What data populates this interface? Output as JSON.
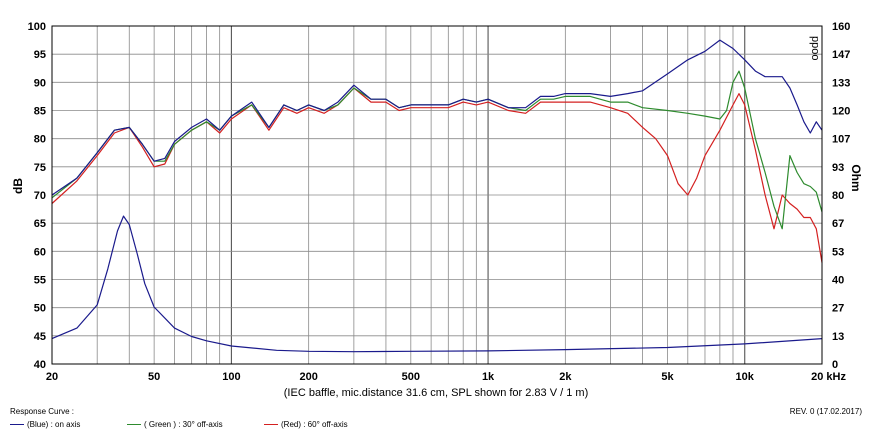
{
  "chart_data": {
    "type": "line",
    "caption": "(IEC baffle, mic.distance 31.6 cm, SPL shown for 2.83 V / 1 m)",
    "xscale": "log",
    "xlim": [
      20,
      20000
    ],
    "x_ticks": [
      {
        "v": 20,
        "label": "20"
      },
      {
        "v": 50,
        "label": "50"
      },
      {
        "v": 100,
        "label": "100"
      },
      {
        "v": 200,
        "label": "200"
      },
      {
        "v": 500,
        "label": "500"
      },
      {
        "v": 1000,
        "label": "1k"
      },
      {
        "v": 2000,
        "label": "2k"
      },
      {
        "v": 5000,
        "label": "5k"
      },
      {
        "v": 10000,
        "label": "10k"
      },
      {
        "v": 20000,
        "label": "20 kHz"
      }
    ],
    "ylabel_left": "dB",
    "ylim_left": [
      40,
      100
    ],
    "yticks_left": [
      40,
      45,
      50,
      55,
      60,
      65,
      70,
      75,
      80,
      85,
      90,
      95,
      100
    ],
    "ylabel_right": "Ohm",
    "ylim_right": [
      0,
      160
    ],
    "yticks_right": [
      "0",
      "13",
      "27",
      "40",
      "53",
      "67",
      "80",
      "93",
      "107",
      "120",
      "133",
      "147",
      "160"
    ],
    "corner_label": "ppoo",
    "grid": true,
    "series": [
      {
        "name": "(Blue) : on axis",
        "color": "#1a1a8c",
        "x": [
          20,
          25,
          30,
          35,
          40,
          45,
          50,
          55,
          60,
          70,
          80,
          90,
          100,
          120,
          140,
          160,
          180,
          200,
          230,
          260,
          300,
          350,
          400,
          450,
          500,
          600,
          700,
          800,
          900,
          1000,
          1200,
          1400,
          1600,
          1800,
          2000,
          2500,
          3000,
          3500,
          4000,
          5000,
          6000,
          7000,
          8000,
          9000,
          10000,
          11000,
          12000,
          13000,
          14000,
          15000,
          16000,
          17000,
          18000,
          19000,
          20000
        ],
        "y": [
          70,
          73,
          77.5,
          81.5,
          82,
          79,
          76,
          76.5,
          79.5,
          82,
          83.5,
          81.5,
          84,
          86.5,
          82,
          86,
          85,
          86,
          85,
          86.5,
          89.5,
          87,
          87,
          85.5,
          86,
          86,
          86,
          87,
          86.5,
          87,
          85.5,
          85.5,
          87.5,
          87.5,
          88,
          88,
          87.5,
          88,
          88.5,
          91.5,
          94,
          95.5,
          97.5,
          96,
          94,
          92,
          91,
          91,
          91,
          89,
          86,
          83,
          81,
          83,
          81.5
        ]
      },
      {
        "name": "( Green ) : 30° off-axis",
        "color": "#2e8b2e",
        "x": [
          20,
          25,
          30,
          35,
          40,
          45,
          50,
          55,
          60,
          70,
          80,
          90,
          100,
          120,
          140,
          160,
          180,
          200,
          230,
          260,
          300,
          350,
          400,
          450,
          500,
          600,
          700,
          800,
          900,
          1000,
          1200,
          1400,
          1600,
          1800,
          2000,
          2500,
          3000,
          3500,
          4000,
          5000,
          6000,
          7000,
          8000,
          8500,
          9000,
          9500,
          10000,
          11000,
          12000,
          13000,
          14000,
          15000,
          16000,
          17000,
          18000,
          19000,
          20000
        ],
        "y": [
          69.5,
          73,
          77.5,
          81.5,
          82,
          79,
          76,
          76,
          79,
          81.5,
          83,
          81.5,
          84,
          86,
          82,
          86,
          85,
          86,
          85,
          86,
          89,
          87,
          87,
          85.5,
          86,
          86,
          86,
          87,
          86.5,
          87,
          85.5,
          85,
          87,
          87,
          87.5,
          87.5,
          86.5,
          86.5,
          85.5,
          85,
          84.5,
          84,
          83.5,
          85,
          90,
          92,
          89,
          80,
          74,
          68,
          64,
          77,
          74,
          72,
          71.5,
          70.5,
          67
        ]
      },
      {
        "name": "(Red) : 60° off-axis",
        "color": "#d42020",
        "x": [
          20,
          25,
          30,
          35,
          40,
          45,
          50,
          55,
          60,
          70,
          80,
          90,
          100,
          120,
          140,
          160,
          180,
          200,
          230,
          260,
          300,
          350,
          400,
          450,
          500,
          600,
          700,
          800,
          900,
          1000,
          1200,
          1400,
          1600,
          1800,
          2000,
          2500,
          3000,
          3500,
          4000,
          4500,
          5000,
          5500,
          6000,
          6500,
          7000,
          8000,
          9000,
          9500,
          10000,
          11000,
          12000,
          13000,
          14000,
          15000,
          16000,
          17000,
          18000,
          19000,
          20000
        ],
        "y": [
          68.5,
          72.5,
          77,
          81,
          82,
          78.5,
          75,
          75.5,
          79,
          81.5,
          83,
          81,
          83.5,
          86,
          81.5,
          85.5,
          84.5,
          85.5,
          84.5,
          86,
          89,
          86.5,
          86.5,
          85,
          85.5,
          85.5,
          85.5,
          86.5,
          86,
          86.5,
          85,
          84.5,
          86.5,
          86.5,
          86.5,
          86.5,
          85.5,
          84.5,
          82,
          80,
          77,
          72,
          70,
          73,
          77,
          81.5,
          86,
          88,
          86,
          78,
          70,
          64,
          70,
          68.5,
          67.5,
          66,
          66,
          64,
          58
        ]
      },
      {
        "name": "impedance",
        "axis": "right",
        "color": "#1a1a8c",
        "x": [
          20,
          25,
          30,
          33,
          36,
          38,
          40,
          43,
          46,
          50,
          60,
          70,
          80,
          100,
          150,
          200,
          300,
          500,
          1000,
          2000,
          5000,
          10000,
          20000
        ],
        "y": [
          12,
          17,
          28,
          45,
          63,
          70,
          66,
          52,
          38,
          27,
          17,
          13,
          11,
          8.5,
          6.5,
          6,
          5.8,
          6,
          6.2,
          6.8,
          7.8,
          9.5,
          12
        ]
      }
    ]
  },
  "footer": {
    "title": "Response Curve :",
    "revision": "REV. 0 (17.02.2017)",
    "legend": [
      {
        "label": "(Blue) : on axis",
        "color": "#1a1a8c"
      },
      {
        "label": "( Green ) : 30° off-axis",
        "color": "#2e8b2e"
      },
      {
        "label": "(Red) : 60° off-axis",
        "color": "#d42020"
      }
    ]
  }
}
